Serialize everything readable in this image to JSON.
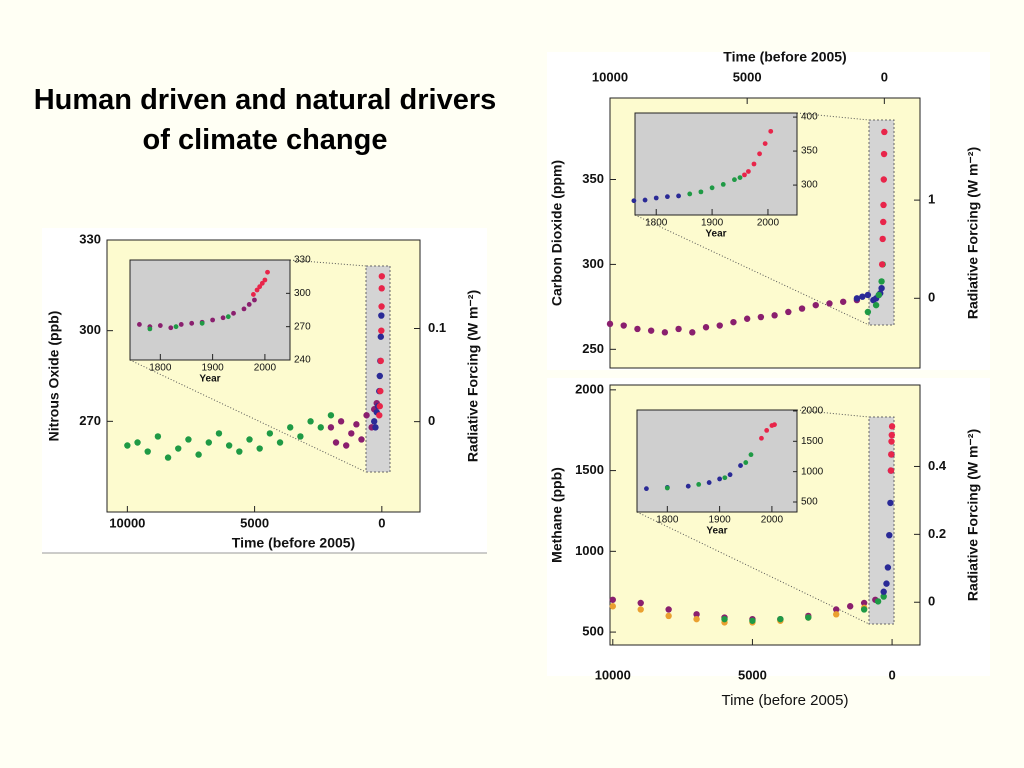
{
  "title": "Human driven and natural drivers of climate change",
  "chart_data": [
    {
      "type": "scatter",
      "x_label": "Time (before 2005)",
      "y_label": "Nitrous Oxide (ppb)",
      "y2_label": "Radiative Forcing (W m⁻²)",
      "xaxis": "bottom",
      "xlim": [
        10800,
        -1500
      ],
      "xticks": [
        10000,
        5000,
        0
      ],
      "ylim": [
        240,
        330
      ],
      "yticks": [
        270,
        300,
        330
      ],
      "y2lim": [
        -0.097,
        0.195
      ],
      "y2ticks": [
        0,
        0.1
      ],
      "series": [
        {
          "color": "#1f9a45",
          "x": [
            10000,
            9600,
            9200,
            8800,
            8400,
            8000,
            7600,
            7200,
            6800,
            6400,
            6000,
            5600,
            5200,
            4800,
            4400,
            4000,
            3600,
            3200,
            2800,
            2400,
            2000
          ],
          "values": [
            262,
            263,
            260,
            265,
            258,
            261,
            264,
            259,
            263,
            266,
            262,
            260,
            264,
            261,
            266,
            263,
            268,
            265,
            270,
            268,
            272
          ]
        },
        {
          "color": "#8a1f6e",
          "x": [
            2000,
            1800,
            1600,
            1400,
            1200,
            1000,
            800,
            600,
            400,
            300,
            200
          ],
          "values": [
            268,
            263,
            270,
            262,
            266,
            269,
            264,
            272,
            268,
            274,
            276
          ]
        },
        {
          "color": "#2a2a96",
          "x": [
            300,
            250,
            200,
            150,
            100,
            80,
            60,
            40,
            20
          ],
          "values": [
            270,
            268,
            273,
            275,
            280,
            285,
            290,
            298,
            305
          ]
        },
        {
          "color": "#e8254a",
          "x": [
            100,
            80,
            60,
            40,
            20,
            10,
            5,
            0
          ],
          "values": [
            272,
            275,
            280,
            290,
            300,
            308,
            314,
            318
          ]
        }
      ]
    },
    {
      "type": "scatter",
      "x_label": "Year",
      "xlim": [
        1742,
        2048
      ],
      "xticks": [
        1800,
        1900,
        2000
      ],
      "ylim": [
        240,
        330
      ],
      "yticks": [
        240,
        270,
        300,
        330
      ],
      "series": [
        {
          "color": "#8a1f6e",
          "x": [
            1760,
            1780,
            1800,
            1820,
            1840,
            1860,
            1880,
            1900,
            1920,
            1940,
            1960,
            1970,
            1980
          ],
          "values": [
            272,
            270,
            271,
            269,
            272,
            273,
            274,
            276,
            278,
            282,
            286,
            290,
            294
          ]
        },
        {
          "color": "#1f9a45",
          "x": [
            1780,
            1830,
            1880,
            1930
          ],
          "values": [
            268,
            270,
            273,
            279
          ]
        },
        {
          "color": "#e8254a",
          "x": [
            1978,
            1985,
            1990,
            1995,
            2000,
            2005
          ],
          "values": [
            299,
            303,
            306,
            309,
            312,
            319
          ]
        }
      ]
    },
    {
      "type": "scatter",
      "x_label": "Time (before 2005)",
      "y_label": "Carbon Dioxide (ppm)",
      "y2_label": "Radiative Forcing (W m⁻²)",
      "xaxis": "top",
      "xlim": [
        10000,
        -1300
      ],
      "xticks": [
        10000,
        5000,
        0
      ],
      "ylim": [
        239,
        398
      ],
      "yticks": [
        250,
        300,
        350
      ],
      "y2lim": [
        -0.71,
        2.04
      ],
      "y2ticks": [
        0,
        1
      ],
      "series": [
        {
          "color": "#8a1f6e",
          "x": [
            10000,
            9500,
            9000,
            8500,
            8000,
            7500,
            7000,
            6500,
            6000,
            5500,
            5000,
            4500,
            4000,
            3500,
            3000,
            2500,
            2000,
            1500,
            1000
          ],
          "values": [
            265,
            264,
            262,
            261,
            260,
            262,
            260,
            263,
            264,
            266,
            268,
            269,
            270,
            272,
            274,
            276,
            277,
            278,
            279
          ]
        },
        {
          "color": "#2a2a96",
          "x": [
            1000,
            800,
            600,
            400,
            300,
            200,
            150,
            100
          ],
          "values": [
            280,
            281,
            282,
            279,
            280,
            282,
            283,
            286
          ]
        },
        {
          "color": "#1f9a45",
          "x": [
            600,
            300,
            200,
            100,
            60
          ],
          "values": [
            272,
            276,
            282,
            290,
            300
          ]
        },
        {
          "color": "#e8254a",
          "x": [
            80,
            60,
            40,
            30,
            20,
            10,
            0
          ],
          "values": [
            300,
            315,
            325,
            335,
            350,
            365,
            378
          ]
        }
      ]
    },
    {
      "type": "scatter",
      "x_label": "Year",
      "xlim": [
        1762,
        2052
      ],
      "xticks": [
        1800,
        1900,
        2000
      ],
      "ylim": [
        256,
        406
      ],
      "yticks": [
        300,
        350,
        400
      ],
      "series": [
        {
          "color": "#2a2a96",
          "x": [
            1760,
            1780,
            1800,
            1820,
            1840
          ],
          "values": [
            277,
            278,
            281,
            283,
            284
          ]
        },
        {
          "color": "#1f9a45",
          "x": [
            1860,
            1880,
            1900,
            1920,
            1940,
            1950
          ],
          "values": [
            287,
            290,
            296,
            301,
            308,
            311
          ]
        },
        {
          "color": "#e8254a",
          "x": [
            1958,
            1965,
            1975,
            1985,
            1995,
            2005
          ],
          "values": [
            315,
            320,
            331,
            346,
            361,
            379
          ]
        }
      ]
    },
    {
      "type": "scatter",
      "x_label": "Time (before 2005)",
      "y_label": "Methane (ppb)",
      "y2_label": "Radiative Forcing (W m⁻²)",
      "xaxis": "bottom",
      "xlim": [
        10100,
        -1000
      ],
      "xticks": [
        10000,
        5000,
        0
      ],
      "ylim": [
        420,
        2030
      ],
      "yticks": [
        500,
        1000,
        1500,
        2000
      ],
      "y2lim": [
        -0.126,
        0.64
      ],
      "y2ticks": [
        0,
        0.2,
        0.4
      ],
      "series": [
        {
          "color": "#8a1f6e",
          "x": [
            10000,
            9000,
            8000,
            7000,
            6000,
            5000,
            4000,
            3000,
            2000,
            1500,
            1000,
            600
          ],
          "values": [
            700,
            680,
            640,
            610,
            590,
            580,
            580,
            600,
            640,
            660,
            680,
            700
          ]
        },
        {
          "color": "#eaa030",
          "x": [
            10000,
            9000,
            8000,
            7000,
            6000,
            5000,
            4000,
            3000,
            2000,
            1000
          ],
          "values": [
            660,
            640,
            600,
            580,
            560,
            560,
            570,
            590,
            610,
            650
          ]
        },
        {
          "color": "#1f9a45",
          "x": [
            6000,
            5000,
            4000,
            3000,
            1000,
            500,
            300
          ],
          "values": [
            580,
            570,
            580,
            590,
            640,
            690,
            720
          ]
        },
        {
          "color": "#2a2a96",
          "x": [
            300,
            200,
            150,
            100,
            60,
            40,
            20
          ],
          "values": [
            750,
            800,
            900,
            1100,
            1300,
            1500,
            1600
          ]
        },
        {
          "color": "#e8254a",
          "x": [
            40,
            30,
            20,
            10,
            0
          ],
          "values": [
            1500,
            1600,
            1680,
            1720,
            1774
          ]
        }
      ]
    },
    {
      "type": "scatter",
      "x_label": "Year",
      "xlim": [
        1742,
        2048
      ],
      "xticks": [
        1800,
        1900,
        2000
      ],
      "ylim": [
        335,
        2016
      ],
      "yticks": [
        500,
        1000,
        1500,
        2000
      ],
      "series": [
        {
          "color": "#2a2a96",
          "x": [
            1760,
            1800,
            1840,
            1880,
            1900,
            1920,
            1940
          ],
          "values": [
            720,
            740,
            760,
            820,
            880,
            950,
            1100
          ]
        },
        {
          "color": "#1f9a45",
          "x": [
            1800,
            1860,
            1910,
            1950,
            1960
          ],
          "values": [
            730,
            790,
            900,
            1150,
            1280
          ]
        },
        {
          "color": "#e8254a",
          "x": [
            1980,
            1990,
            2000,
            2005
          ],
          "values": [
            1550,
            1680,
            1760,
            1774
          ]
        }
      ]
    }
  ]
}
